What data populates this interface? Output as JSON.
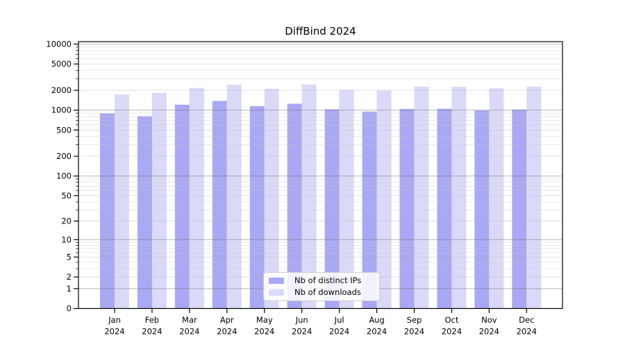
{
  "chart_data": {
    "type": "bar",
    "title": "DiffBind 2024",
    "x": {
      "months": [
        "Jan",
        "Feb",
        "Mar",
        "Apr",
        "May",
        "Jun",
        "Jul",
        "Aug",
        "Sep",
        "Oct",
        "Nov",
        "Dec"
      ],
      "year": "2024"
    },
    "series": [
      {
        "name": "Nb of distinct IPs",
        "color": "#a8a8f4",
        "values": [
          890,
          810,
          1210,
          1380,
          1150,
          1250,
          1030,
          950,
          1040,
          1050,
          990,
          1020
        ]
      },
      {
        "name": "Nb of downloads",
        "color": "#dadaf8",
        "values": [
          1730,
          1830,
          2170,
          2430,
          2100,
          2450,
          2040,
          1970,
          2270,
          2260,
          2140,
          2270
        ]
      }
    ],
    "y_ticks": [
      0,
      1,
      2,
      5,
      10,
      20,
      50,
      100,
      200,
      500,
      1000,
      2000,
      5000,
      10000
    ],
    "y_scale": "log10(1+v)",
    "ylim": [
      0,
      11000
    ],
    "grid": "horizontal",
    "legend_position": "lower center",
    "colors": {
      "grid_major": "#7a7a7a",
      "grid_labeled": "#b4b4b4",
      "grid_minor": "#c9c9c9",
      "axis": "#000000"
    }
  }
}
